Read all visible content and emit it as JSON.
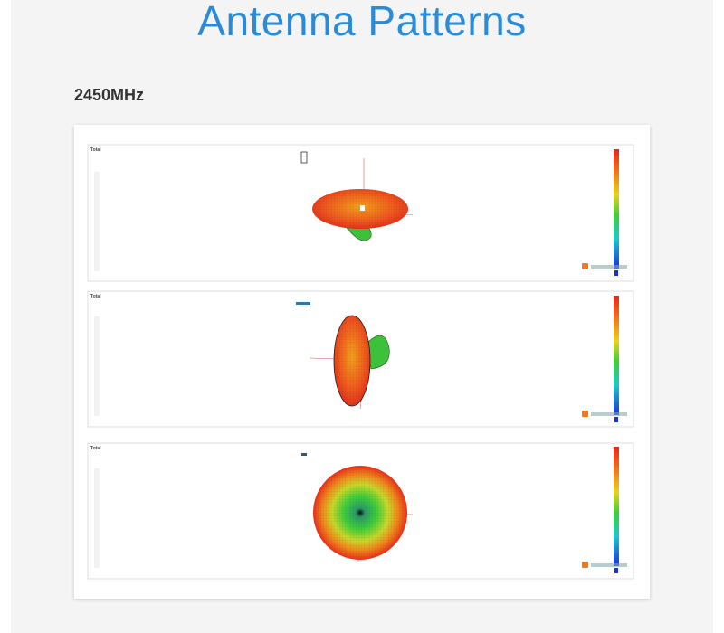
{
  "header": {
    "title": "Antenna Patterns"
  },
  "section": {
    "heading": "2450MHz"
  },
  "panels": [
    {
      "label": "Total"
    },
    {
      "label": "Total"
    },
    {
      "label": "Total"
    }
  ]
}
